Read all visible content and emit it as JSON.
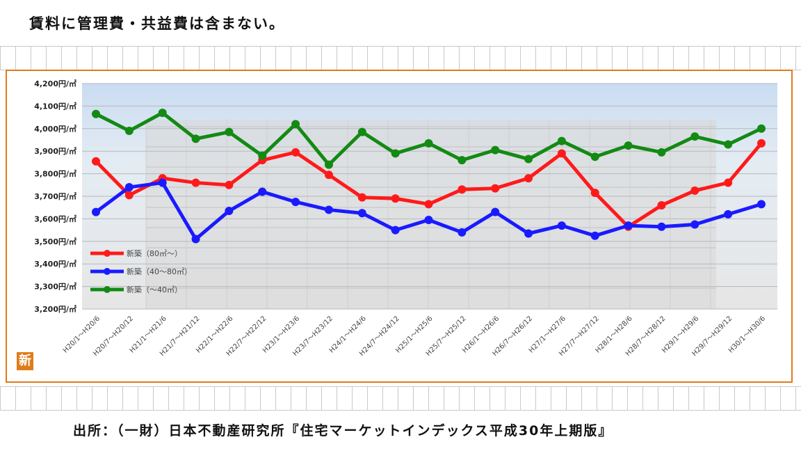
{
  "note": "賃料に管理費・共益費は含まない。",
  "source": "出所：（一財）日本不動産研究所『住宅マーケットインデックス平成30年上期版』",
  "badge": "新",
  "chart_data": {
    "type": "line",
    "title": "",
    "xlabel": "",
    "ylabel": "",
    "ylim": [
      3200,
      4200
    ],
    "yticks": [
      {
        "value": 3200,
        "label": "3,200円/㎡"
      },
      {
        "value": 3300,
        "label": "3,300円/㎡"
      },
      {
        "value": 3400,
        "label": "3,400円/㎡"
      },
      {
        "value": 3500,
        "label": "3,500円/㎡"
      },
      {
        "value": 3600,
        "label": "3,600円/㎡"
      },
      {
        "value": 3700,
        "label": "3,700円/㎡"
      },
      {
        "value": 3800,
        "label": "3,800円/㎡"
      },
      {
        "value": 3900,
        "label": "3,900円/㎡"
      },
      {
        "value": 4000,
        "label": "4,000円/㎡"
      },
      {
        "value": 4100,
        "label": "4,100円/㎡"
      },
      {
        "value": 4200,
        "label": "4,200円/㎡"
      }
    ],
    "categories": [
      "H20/1～H20/6",
      "H20/7～H20/12",
      "H21/1～H21/6",
      "H21/7～H21/12",
      "H22/1～H22/6",
      "H22/7～H22/12",
      "H23/1～H23/6",
      "H23/7～H23/12",
      "H24/1～H24/6",
      "H24/7～H24/12",
      "H25/1～H25/6",
      "H25/7～H25/12",
      "H26/1～H26/6",
      "H26/7～H26/12",
      "H27/1～H27/6",
      "H27/7～H27/12",
      "H28/1～H28/6",
      "H28/7～H28/12",
      "H29/1～H29/6",
      "H29/7～H29/12",
      "H30/1～H30/6"
    ],
    "legend_position": "bottom-left",
    "grid": true,
    "series": [
      {
        "name": "新築（80㎡～）",
        "color": "#ff1a1a",
        "values": [
          3855,
          3705,
          3780,
          3760,
          3750,
          3860,
          3895,
          3795,
          3695,
          3690,
          3665,
          3730,
          3735,
          3780,
          3890,
          3715,
          3565,
          3660,
          3725,
          3760,
          3935
        ]
      },
      {
        "name": "新築（40～80㎡）",
        "color": "#1a1aff",
        "values": [
          3630,
          3740,
          3760,
          3510,
          3635,
          3720,
          3675,
          3640,
          3625,
          3550,
          3595,
          3540,
          3630,
          3535,
          3570,
          3525,
          3570,
          3565,
          3575,
          3620,
          3665
        ]
      },
      {
        "name": "新築（～40㎡）",
        "color": "#138a13",
        "values": [
          4065,
          3990,
          4070,
          3955,
          3985,
          3880,
          4020,
          3840,
          3985,
          3890,
          3935,
          3860,
          3905,
          3865,
          3945,
          3875,
          3925,
          3895,
          3965,
          3930,
          4000
        ]
      }
    ]
  }
}
